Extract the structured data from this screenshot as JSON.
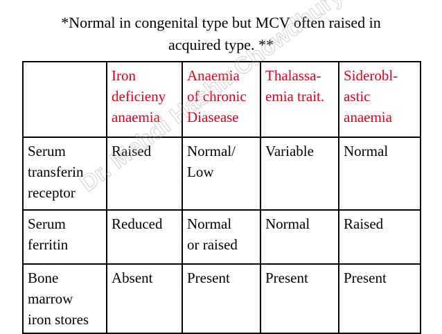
{
  "title": [
    "*Normal in congenital type but MCV often raised in",
    "acquired type.  **"
  ],
  "watermark": "Dr. Mehdi Hashir Chowdhury",
  "table": {
    "header": [
      [],
      [
        "Iron",
        "deficieny",
        "anaemia"
      ],
      [
        "Anaemia",
        "of chronic",
        "Diasease"
      ],
      [
        "Thalassa-",
        "emia trait."
      ],
      [
        "Siderobl-",
        "astic",
        "anaemia"
      ]
    ],
    "rows": [
      [
        [
          "Serum",
          "transferin",
          "receptor"
        ],
        [
          "Raised"
        ],
        [
          "Normal/",
          "Low"
        ],
        [
          "Variable"
        ],
        [
          "Normal"
        ]
      ],
      [
        [
          "Serum",
          "ferritin"
        ],
        [
          "Reduced"
        ],
        [
          "Normal",
          "or raised"
        ],
        [
          "Normal"
        ],
        [
          "Raised"
        ]
      ],
      [
        [
          "Bone",
          "marrow",
          "iron stores"
        ],
        [
          "Absent"
        ],
        [
          "Present"
        ],
        [
          "Present"
        ],
        [
          "Present"
        ]
      ]
    ]
  }
}
